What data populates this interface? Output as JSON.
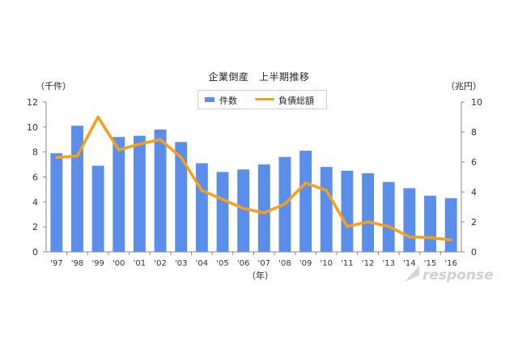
{
  "chart_data": {
    "type": "bar+line",
    "title": "企業倒産　上半期推移",
    "categories": [
      "'97",
      "'98",
      "'99",
      "'00",
      "'01",
      "'02",
      "'03",
      "'04",
      "'05",
      "'06",
      "'07",
      "'08",
      "'09",
      "'10",
      "'11",
      "'12",
      "'13",
      "'14",
      "'15",
      "'16"
    ],
    "xlabel": "（年）",
    "left_unit": "（千件）",
    "right_unit": "（兆円）",
    "left_axis": {
      "min": 0,
      "max": 12,
      "ticks": [
        0,
        2,
        4,
        6,
        8,
        10,
        12
      ]
    },
    "right_axis": {
      "min": 0,
      "max": 10,
      "ticks": [
        0,
        2,
        4,
        6,
        8,
        10
      ]
    },
    "grid": false,
    "legend_position": "top-center",
    "series": [
      {
        "name": "件数",
        "kind": "bar",
        "axis": "left",
        "color": "#5B8EE8",
        "values": [
          7.9,
          10.1,
          6.9,
          9.2,
          9.3,
          9.8,
          8.8,
          7.1,
          6.4,
          6.6,
          7.0,
          7.6,
          8.1,
          6.8,
          6.5,
          6.3,
          5.6,
          5.1,
          4.5,
          4.3
        ]
      },
      {
        "name": "負債総額",
        "kind": "line",
        "axis": "right",
        "color": "#F5A01A",
        "values": [
          6.3,
          6.4,
          9.0,
          6.8,
          7.2,
          7.5,
          6.3,
          4.1,
          3.5,
          2.9,
          2.6,
          3.2,
          4.6,
          4.1,
          1.7,
          2.0,
          1.7,
          1.0,
          0.95,
          0.8
        ]
      }
    ]
  },
  "watermark": {
    "text": "response."
  }
}
